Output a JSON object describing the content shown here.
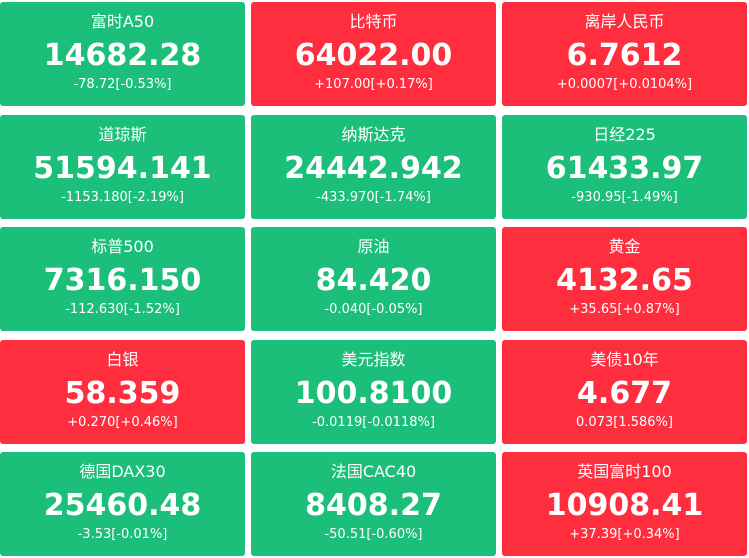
{
  "tiles": [
    {
      "name": "富时A50",
      "price": "14682.28",
      "change": "-78.72[-0.53%]",
      "color": "#1bbf7a"
    },
    {
      "name": "比特币",
      "price": "64022.00",
      "change": "+107.00[+0.17%]",
      "color": "#fe2e3f"
    },
    {
      "name": "离岸人民币",
      "price": "6.7612",
      "change": "+0.0007[+0.0104%]",
      "color": "#fe2e3f"
    },
    {
      "name": "道琼斯",
      "price": "51594.141",
      "change": "-1153.180[-2.19%]",
      "color": "#1bbf7a"
    },
    {
      "name": "纳斯达克",
      "price": "24442.942",
      "change": "-433.970[-1.74%]",
      "color": "#1bbf7a"
    },
    {
      "name": "日经225",
      "price": "61433.97",
      "change": "-930.95[-1.49%]",
      "color": "#1bbf7a"
    },
    {
      "name": "标普500",
      "price": "7316.150",
      "change": "-112.630[-1.52%]",
      "color": "#1bbf7a"
    },
    {
      "name": "原油",
      "price": "84.420",
      "change": "-0.040[-0.05%]",
      "color": "#1bbf7a"
    },
    {
      "name": "黄金",
      "price": "4132.65",
      "change": "+35.65[+0.87%]",
      "color": "#fe2e3f"
    },
    {
      "name": "白银",
      "price": "58.359",
      "change": "+0.270[+0.46%]",
      "color": "#fe2e3f"
    },
    {
      "name": "美元指数",
      "price": "100.8100",
      "change": "-0.0119[-0.0118%]",
      "color": "#1bbf7a"
    },
    {
      "name": "美债10年",
      "price": "4.677",
      "change": "0.073[1.586%]",
      "color": "#fe2e3f"
    },
    {
      "name": "德国DAX30",
      "price": "25460.48",
      "change": "-3.53[-0.01%]",
      "color": "#1bbf7a"
    },
    {
      "name": "法国CAC40",
      "price": "8408.27",
      "change": "-50.51[-0.60%]",
      "color": "#1bbf7a"
    },
    {
      "name": "英国富时100",
      "price": "10908.41",
      "change": "+37.39[+0.34%]",
      "color": "#fe2e3f"
    }
  ]
}
